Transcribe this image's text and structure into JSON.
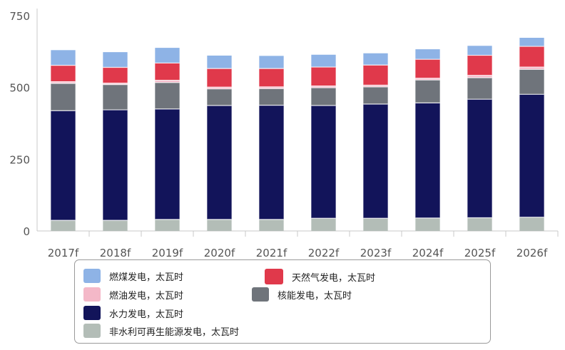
{
  "chart_data": {
    "type": "bar",
    "stacked": true,
    "categories": [
      "2017f",
      "2018f",
      "2019f",
      "2020f",
      "2021f",
      "2022f",
      "2023f",
      "2024f",
      "2025f",
      "2026f"
    ],
    "ylim": [
      0,
      750
    ],
    "yticks": [
      "0",
      "250",
      "500",
      "750"
    ],
    "grid": false,
    "legend_position": "bottom",
    "series": [
      {
        "name": "非水利可再生能源发电，太瓦时",
        "color": "#b3bdb7",
        "values": [
          37,
          37,
          40,
          40,
          40,
          44,
          44,
          45,
          46,
          48
        ]
      },
      {
        "name": "水力发电，太瓦时",
        "color": "#12145a",
        "values": [
          382,
          385,
          385,
          397,
          398,
          393,
          398,
          401,
          413,
          428
        ]
      },
      {
        "name": "核能发电，太瓦时",
        "color": "#6f747b",
        "values": [
          95,
          88,
          92,
          58,
          58,
          62,
          60,
          80,
          75,
          87
        ]
      },
      {
        "name": "燃油发电，太瓦时",
        "color": "#f4b8c8",
        "values": [
          6,
          5,
          8,
          6,
          6,
          6,
          6,
          6,
          8,
          8
        ]
      },
      {
        "name": "天然气发电，太瓦时",
        "color": "#e0394b",
        "values": [
          57,
          55,
          60,
          65,
          64,
          66,
          70,
          66,
          70,
          72
        ]
      },
      {
        "name": "燃煤发电，太瓦时",
        "color": "#8eb3e6",
        "values": [
          53,
          53,
          53,
          45,
          44,
          43,
          41,
          35,
          33,
          30
        ]
      }
    ]
  },
  "legend": {
    "items": [
      {
        "label": "燃煤发电，太瓦时",
        "color": "#8eb3e6"
      },
      {
        "label": "天然气发电，太瓦时",
        "color": "#e0394b"
      },
      {
        "label": "燃油发电，太瓦时",
        "color": "#f4b8c8"
      },
      {
        "label": "核能发电，太瓦时",
        "color": "#6f747b"
      },
      {
        "label": "水力发电，太瓦时",
        "color": "#12145a"
      },
      {
        "label": "非水利可再生能源发电，太瓦时",
        "color": "#b3bdb7"
      }
    ]
  }
}
